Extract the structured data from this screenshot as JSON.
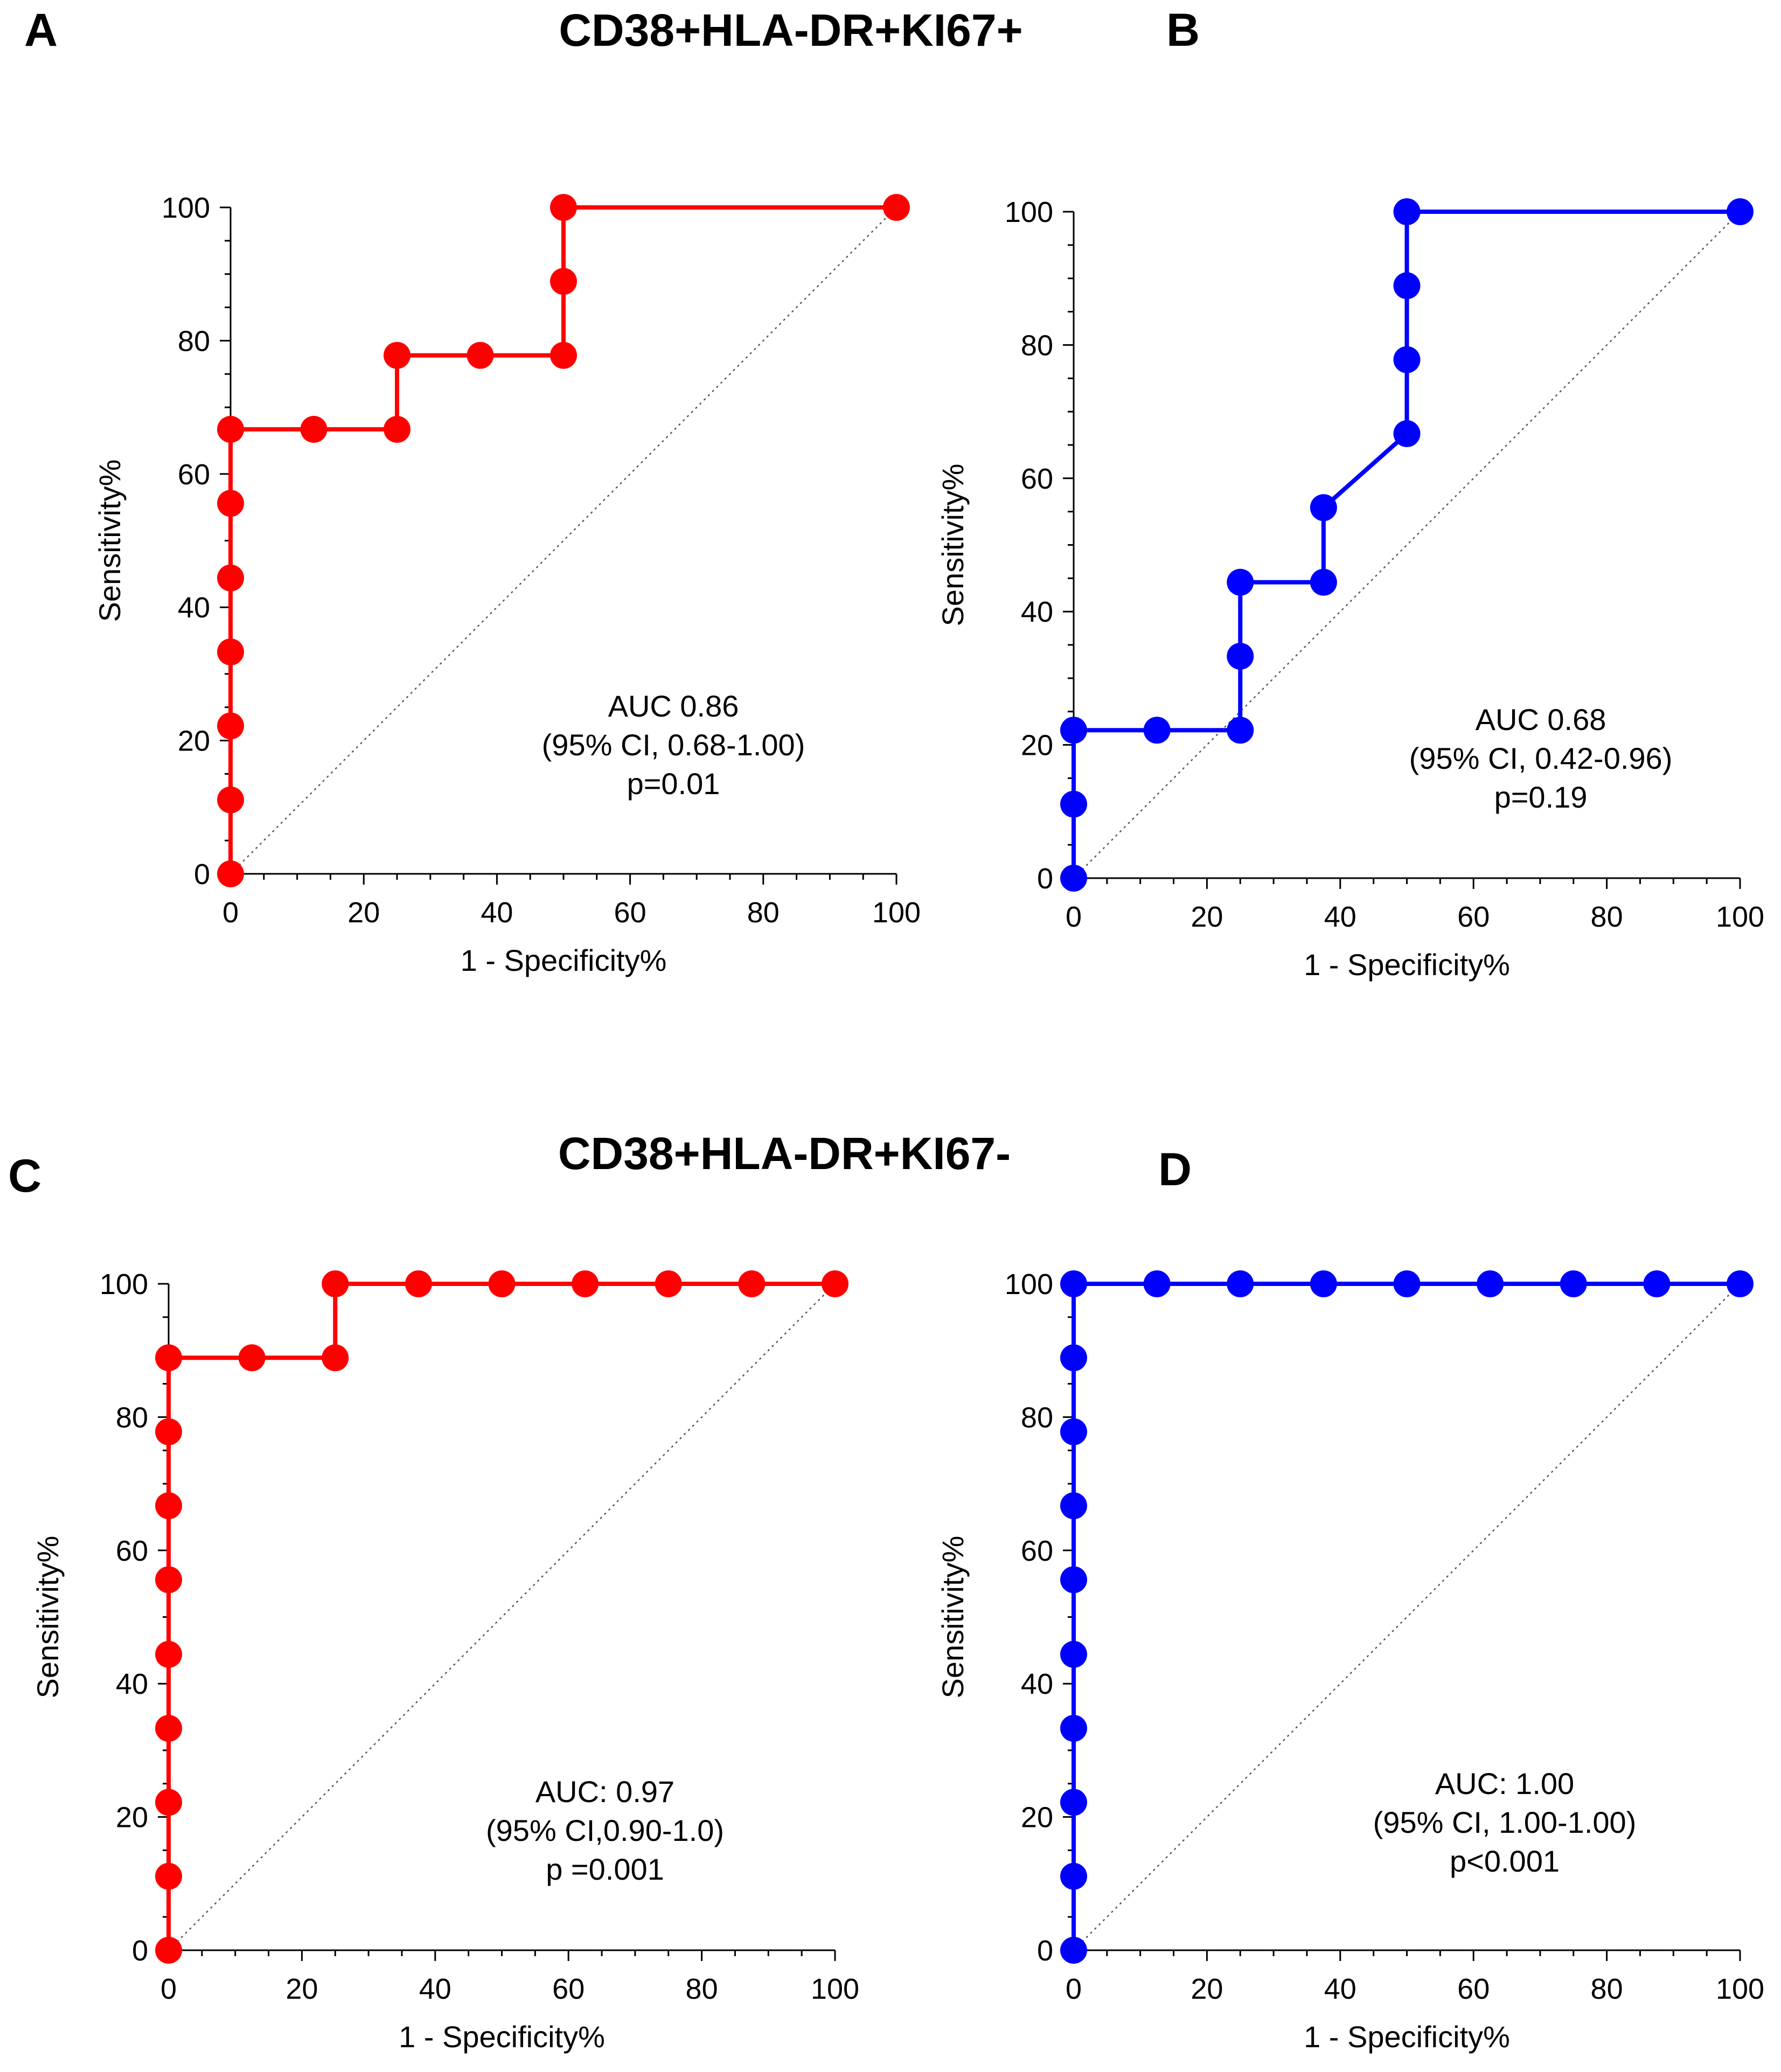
{
  "figure": {
    "titles": {
      "top": "CD38+HLA-DR+KI67+",
      "bottom": "CD38+HLA-DR+KI67-"
    },
    "colors": {
      "red": "#ff0000",
      "blue": "#0000ff",
      "axis": "#000000",
      "diagonal": "#555555"
    }
  },
  "chart_data": [
    {
      "panel": "A",
      "type": "line",
      "subtype": "roc",
      "color": "#ff0000",
      "xlabel": "1 - Specificity%",
      "ylabel": "Sensitivity%",
      "xlim": [
        0,
        100
      ],
      "ylim": [
        0,
        100
      ],
      "xticks": [
        0,
        20,
        40,
        60,
        80,
        100
      ],
      "yticks": [
        0,
        20,
        40,
        60,
        80,
        100
      ],
      "points": [
        {
          "x": 0,
          "y": 0
        },
        {
          "x": 0,
          "y": 11.1
        },
        {
          "x": 0,
          "y": 22.2
        },
        {
          "x": 0,
          "y": 33.3
        },
        {
          "x": 0,
          "y": 44.4
        },
        {
          "x": 0,
          "y": 55.6
        },
        {
          "x": 0,
          "y": 66.7
        },
        {
          "x": 12.5,
          "y": 66.7
        },
        {
          "x": 25,
          "y": 66.7
        },
        {
          "x": 25,
          "y": 77.8
        },
        {
          "x": 37.5,
          "y": 77.8
        },
        {
          "x": 50,
          "y": 77.8
        },
        {
          "x": 50,
          "y": 88.9
        },
        {
          "x": 50,
          "y": 100
        },
        {
          "x": 100,
          "y": 100
        }
      ],
      "annotation": [
        "AUC 0.86",
        "(95% CI, 0.68-1.00)",
        "p=0.01"
      ]
    },
    {
      "panel": "B",
      "type": "line",
      "subtype": "roc",
      "color": "#0000ff",
      "xlabel": "1 - Specificity%",
      "ylabel": "Sensitivity%",
      "xlim": [
        0,
        100
      ],
      "ylim": [
        0,
        100
      ],
      "xticks": [
        0,
        20,
        40,
        60,
        80,
        100
      ],
      "yticks": [
        0,
        20,
        40,
        60,
        80,
        100
      ],
      "points": [
        {
          "x": 0,
          "y": 0
        },
        {
          "x": 0,
          "y": 11.1
        },
        {
          "x": 0,
          "y": 22.2
        },
        {
          "x": 12.5,
          "y": 22.2
        },
        {
          "x": 25,
          "y": 22.2
        },
        {
          "x": 25,
          "y": 33.3
        },
        {
          "x": 25,
          "y": 44.4
        },
        {
          "x": 37.5,
          "y": 44.4
        },
        {
          "x": 37.5,
          "y": 55.6
        },
        {
          "x": 50,
          "y": 66.7
        },
        {
          "x": 50,
          "y": 77.8
        },
        {
          "x": 50,
          "y": 88.9
        },
        {
          "x": 50,
          "y": 100
        },
        {
          "x": 100,
          "y": 100
        }
      ],
      "annotation": [
        "AUC 0.68",
        "(95% CI, 0.42-0.96)",
        "p=0.19"
      ]
    },
    {
      "panel": "C",
      "type": "line",
      "subtype": "roc",
      "color": "#ff0000",
      "xlabel": "1 - Specificity%",
      "ylabel": "Sensitivity%",
      "xlim": [
        0,
        100
      ],
      "ylim": [
        0,
        100
      ],
      "xticks": [
        0,
        20,
        40,
        60,
        80,
        100
      ],
      "yticks": [
        0,
        20,
        40,
        60,
        80,
        100
      ],
      "points": [
        {
          "x": 0,
          "y": 0
        },
        {
          "x": 0,
          "y": 11.1
        },
        {
          "x": 0,
          "y": 22.2
        },
        {
          "x": 0,
          "y": 33.3
        },
        {
          "x": 0,
          "y": 44.4
        },
        {
          "x": 0,
          "y": 55.6
        },
        {
          "x": 0,
          "y": 66.7
        },
        {
          "x": 0,
          "y": 77.8
        },
        {
          "x": 0,
          "y": 88.9
        },
        {
          "x": 12.5,
          "y": 88.9
        },
        {
          "x": 25,
          "y": 88.9
        },
        {
          "x": 25,
          "y": 100
        },
        {
          "x": 37.5,
          "y": 100
        },
        {
          "x": 50,
          "y": 100
        },
        {
          "x": 62.5,
          "y": 100
        },
        {
          "x": 75,
          "y": 100
        },
        {
          "x": 87.5,
          "y": 100
        },
        {
          "x": 100,
          "y": 100
        }
      ],
      "annotation": [
        "AUC: 0.97",
        "(95% CI,0.90-1.0)",
        "p =0.001"
      ]
    },
    {
      "panel": "D",
      "type": "line",
      "subtype": "roc",
      "color": "#0000ff",
      "xlabel": "1 - Specificity%",
      "ylabel": "Sensitivity%",
      "xlim": [
        0,
        100
      ],
      "ylim": [
        0,
        100
      ],
      "xticks": [
        0,
        20,
        40,
        60,
        80,
        100
      ],
      "yticks": [
        0,
        20,
        40,
        60,
        80,
        100
      ],
      "points": [
        {
          "x": 0,
          "y": 0
        },
        {
          "x": 0,
          "y": 11.1
        },
        {
          "x": 0,
          "y": 22.2
        },
        {
          "x": 0,
          "y": 33.3
        },
        {
          "x": 0,
          "y": 44.4
        },
        {
          "x": 0,
          "y": 55.6
        },
        {
          "x": 0,
          "y": 66.7
        },
        {
          "x": 0,
          "y": 77.8
        },
        {
          "x": 0,
          "y": 88.9
        },
        {
          "x": 0,
          "y": 100
        },
        {
          "x": 12.5,
          "y": 100
        },
        {
          "x": 25,
          "y": 100
        },
        {
          "x": 37.5,
          "y": 100
        },
        {
          "x": 50,
          "y": 100
        },
        {
          "x": 62.5,
          "y": 100
        },
        {
          "x": 75,
          "y": 100
        },
        {
          "x": 87.5,
          "y": 100
        },
        {
          "x": 100,
          "y": 100
        }
      ],
      "annotation": [
        "AUC: 1.00",
        "(95% CI, 1.00-1.00)",
        "p<0.001"
      ]
    }
  ]
}
